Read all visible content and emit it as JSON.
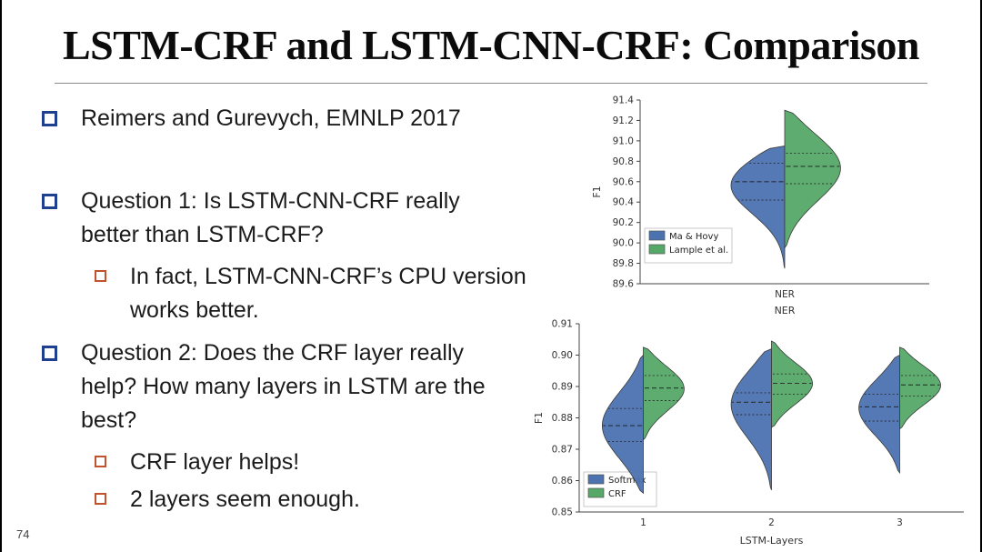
{
  "slide": {
    "title": "LSTM-CRF and LSTM-CNN-CRF: Comparison",
    "page_number": "74",
    "bullets": [
      {
        "level": 1,
        "text": "Reimers and Gurevych, EMNLP 2017"
      },
      {
        "level": 1,
        "text": "Question 1: Is LSTM-CNN-CRF really better than LSTM-CRF?"
      },
      {
        "level": 2,
        "text": "In fact, LSTM-CNN-CRF’s CPU version works better."
      },
      {
        "level": 1,
        "text": "Question 2: Does the CRF layer really help? How many layers in LSTM are the best?"
      },
      {
        "level": 2,
        "text": "CRF layer helps!"
      },
      {
        "level": 2,
        "text": "2 layers seem enough."
      }
    ]
  },
  "colors": {
    "bullet_level1": "#1f3f8f",
    "bullet_level2": "#c0522d",
    "violin_blue": "#4c72b0",
    "violin_green": "#55a868"
  },
  "chart_data": [
    {
      "type": "violin",
      "title": "",
      "xlabel": "NER",
      "ylabel": "F1",
      "ylim": [
        89.6,
        91.4
      ],
      "yticks": [
        "89.6",
        "89.8",
        "90.0",
        "90.2",
        "90.4",
        "90.6",
        "90.8",
        "91.0",
        "91.2",
        "91.4"
      ],
      "categories": [
        "NER"
      ],
      "grid": false,
      "legend_pos": "lower-left",
      "legend": [
        {
          "label": "Ma & Hovy",
          "color": "#4c72b0"
        },
        {
          "label": "Lample et al.",
          "color": "#55a868"
        }
      ],
      "violins": [
        {
          "category": "NER",
          "left": {
            "series": "Ma & Hovy",
            "color": "#4c72b0",
            "median": 90.6,
            "q1": 90.42,
            "q3": 90.78,
            "min": 89.75,
            "max": 90.95
          },
          "right": {
            "series": "Lample et al.",
            "color": "#55a868",
            "median": 90.75,
            "q1": 90.58,
            "q3": 90.88,
            "min": 89.95,
            "max": 91.3
          }
        }
      ]
    },
    {
      "type": "violin",
      "title": "",
      "xlabel": "LSTM-Layers",
      "ylabel": "F1",
      "ylim": [
        0.85,
        0.91
      ],
      "yticks": [
        "0.85",
        "0.86",
        "0.87",
        "0.88",
        "0.89",
        "0.90",
        "0.91"
      ],
      "categories": [
        "1",
        "2",
        "3"
      ],
      "grid": false,
      "legend_pos": "lower-left",
      "legend": [
        {
          "label": "Softmax",
          "color": "#4c72b0"
        },
        {
          "label": "CRF",
          "color": "#55a868"
        }
      ],
      "violins": [
        {
          "category": "1",
          "left": {
            "series": "Softmax",
            "color": "#4c72b0",
            "median": 0.8775,
            "q1": 0.8725,
            "q3": 0.883,
            "min": 0.856,
            "max": 0.9
          },
          "right": {
            "series": "CRF",
            "color": "#55a868",
            "median": 0.8895,
            "q1": 0.8855,
            "q3": 0.8935,
            "min": 0.873,
            "max": 0.9025
          }
        },
        {
          "category": "2",
          "left": {
            "series": "Softmax",
            "color": "#4c72b0",
            "median": 0.885,
            "q1": 0.881,
            "q3": 0.888,
            "min": 0.857,
            "max": 0.902
          },
          "right": {
            "series": "CRF",
            "color": "#55a868",
            "median": 0.891,
            "q1": 0.8875,
            "q3": 0.894,
            "min": 0.877,
            "max": 0.9045
          }
        },
        {
          "category": "3",
          "left": {
            "series": "Softmax",
            "color": "#4c72b0",
            "median": 0.8835,
            "q1": 0.879,
            "q3": 0.8875,
            "min": 0.8625,
            "max": 0.9
          },
          "right": {
            "series": "CRF",
            "color": "#55a868",
            "median": 0.8905,
            "q1": 0.887,
            "q3": 0.8935,
            "min": 0.8765,
            "max": 0.9025
          }
        }
      ]
    }
  ]
}
